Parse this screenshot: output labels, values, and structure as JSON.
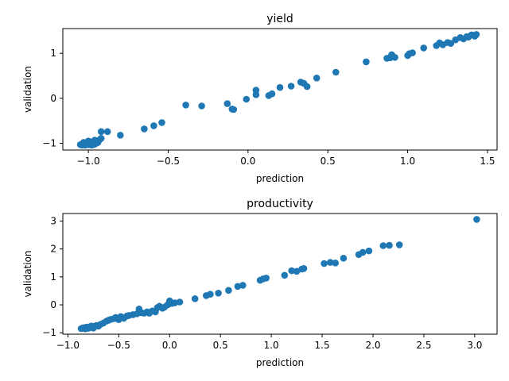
{
  "chart_data": [
    {
      "type": "scatter",
      "title": "yield",
      "xlabel": "prediction",
      "ylabel": "validation",
      "xlim": [
        -1.16,
        1.56
      ],
      "ylim": [
        -1.15,
        1.55
      ],
      "xticks": [
        "-1.0",
        "-0.5",
        "0.0",
        "0.5",
        "1.0",
        "1.5"
      ],
      "yticks": [
        "-1",
        "0",
        "1"
      ],
      "color": "#1f77b4",
      "x": [
        -1.05,
        -1.04,
        -1.03,
        -1.02,
        -1.01,
        -1.0,
        -0.99,
        -0.98,
        -0.97,
        -0.96,
        -0.95,
        -0.94,
        -1.03,
        -1.0,
        -0.98,
        -0.96,
        -0.93,
        -0.92,
        -0.92,
        -0.88,
        -0.8,
        -0.65,
        -0.59,
        -0.54,
        -0.39,
        -0.29,
        -0.13,
        -0.1,
        -0.09,
        -0.01,
        0.05,
        0.05,
        0.13,
        0.15,
        0.2,
        0.27,
        0.33,
        0.35,
        0.37,
        0.43,
        0.55,
        0.74,
        0.87,
        0.89,
        0.9,
        0.92,
        1.0,
        1.01,
        1.03,
        1.1,
        1.18,
        1.2,
        1.22,
        1.25,
        1.27,
        1.3,
        1.33,
        1.35,
        1.37,
        1.38,
        1.4,
        1.42,
        1.43
      ],
      "y": [
        -1.03,
        -1.04,
        -1.03,
        -1.04,
        -1.02,
        -1.03,
        -1.02,
        -1.04,
        -1.03,
        -1.02,
        -1.0,
        -0.98,
        -0.98,
        -0.95,
        -0.97,
        -0.93,
        -0.92,
        -0.89,
        -0.74,
        -0.74,
        -0.82,
        -0.68,
        -0.61,
        -0.54,
        -0.15,
        -0.17,
        -0.12,
        -0.24,
        -0.25,
        -0.02,
        0.18,
        0.08,
        0.06,
        0.1,
        0.24,
        0.27,
        0.36,
        0.33,
        0.26,
        0.45,
        0.58,
        0.81,
        0.89,
        0.9,
        0.97,
        0.91,
        0.95,
        0.99,
        1.01,
        1.12,
        1.17,
        1.23,
        1.19,
        1.24,
        1.22,
        1.3,
        1.35,
        1.32,
        1.37,
        1.36,
        1.41,
        1.38,
        1.42
      ]
    },
    {
      "type": "scatter",
      "title": "productivity",
      "xlabel": "prediction",
      "ylabel": "validation",
      "xlim": [
        -1.05,
        3.22
      ],
      "ylim": [
        -1.05,
        3.27
      ],
      "xticks": [
        "-1.0",
        "-0.5",
        "0.0",
        "0.5",
        "1.0",
        "1.5",
        "2.0",
        "2.5",
        "3.0"
      ],
      "yticks": [
        "-1",
        "0",
        "1",
        "2",
        "3"
      ],
      "color": "#1f77b4",
      "x": [
        -0.87,
        -0.85,
        -0.83,
        -0.82,
        -0.8,
        -0.79,
        -0.78,
        -0.77,
        -0.75,
        -0.74,
        -0.72,
        -0.7,
        -0.68,
        -0.65,
        -0.62,
        -0.6,
        -0.58,
        -0.55,
        -0.53,
        -0.5,
        -0.48,
        -0.45,
        -0.42,
        -0.4,
        -0.36,
        -0.32,
        -0.3,
        -0.28,
        -0.25,
        -0.22,
        -0.2,
        -0.17,
        -0.14,
        -0.12,
        -0.1,
        -0.07,
        -0.05,
        -0.02,
        0.0,
        0.02,
        0.05,
        0.1,
        0.25,
        0.36,
        0.4,
        0.48,
        0.58,
        0.67,
        0.72,
        0.89,
        0.92,
        0.95,
        1.13,
        1.2,
        1.25,
        1.3,
        1.32,
        1.52,
        1.58,
        1.63,
        1.71,
        1.86,
        1.9,
        1.96,
        2.1,
        2.16,
        2.26,
        3.02
      ],
      "y": [
        -0.85,
        -0.82,
        -0.86,
        -0.8,
        -0.84,
        -0.79,
        -0.81,
        -0.76,
        -0.83,
        -0.77,
        -0.74,
        -0.76,
        -0.7,
        -0.65,
        -0.58,
        -0.55,
        -0.52,
        -0.5,
        -0.45,
        -0.53,
        -0.42,
        -0.48,
        -0.4,
        -0.38,
        -0.35,
        -0.32,
        -0.15,
        -0.28,
        -0.3,
        -0.25,
        -0.3,
        -0.22,
        -0.25,
        -0.1,
        -0.05,
        -0.12,
        -0.08,
        0.0,
        0.14,
        0.05,
        0.07,
        0.1,
        0.22,
        0.33,
        0.38,
        0.42,
        0.52,
        0.66,
        0.7,
        0.88,
        0.93,
        0.96,
        1.06,
        1.22,
        1.2,
        1.28,
        1.3,
        1.48,
        1.52,
        1.5,
        1.67,
        1.8,
        1.88,
        1.93,
        2.12,
        2.13,
        2.15,
        3.06
      ]
    }
  ]
}
